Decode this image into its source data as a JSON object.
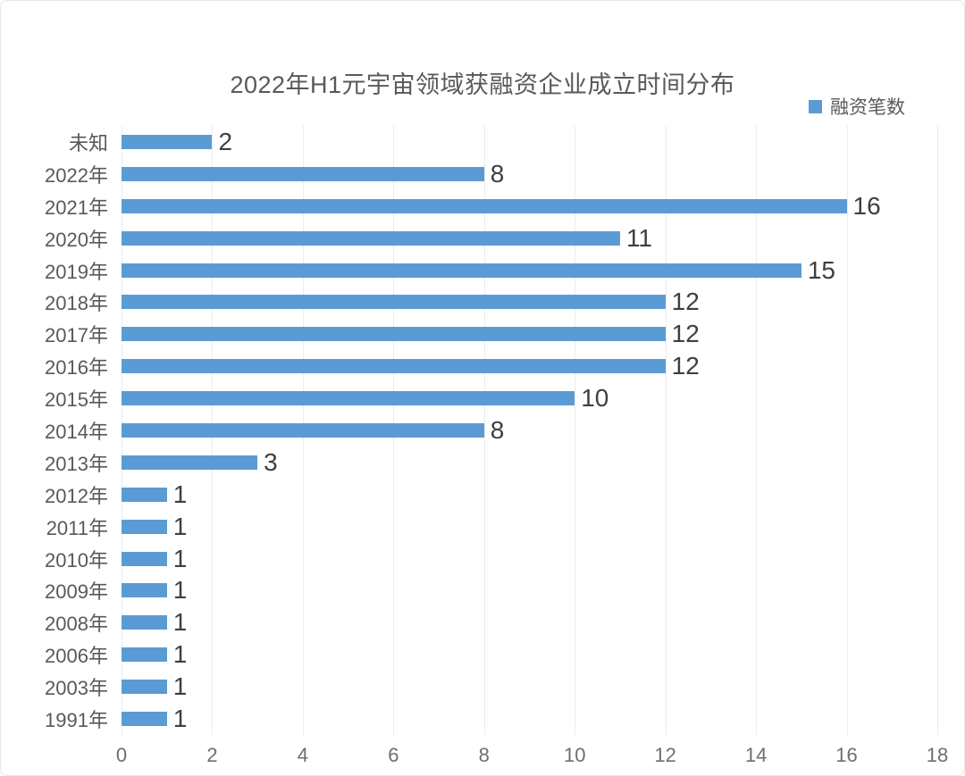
{
  "title": "2022年H1元宇宙领域获融资企业成立时间分布",
  "legend": {
    "label": "融资笔数",
    "color": "#5B9BD5"
  },
  "chart_data": {
    "type": "bar",
    "orientation": "horizontal",
    "title": "2022年H1元宇宙领域获融资企业成立时间分布",
    "series_name": "融资笔数",
    "categories": [
      "未知",
      "2022年",
      "2021年",
      "2020年",
      "2019年",
      "2018年",
      "2017年",
      "2016年",
      "2015年",
      "2014年",
      "2013年",
      "2012年",
      "2011年",
      "2010年",
      "2009年",
      "2008年",
      "2006年",
      "2003年",
      "1991年"
    ],
    "values": [
      2,
      8,
      16,
      11,
      15,
      12,
      12,
      12,
      10,
      8,
      3,
      1,
      1,
      1,
      1,
      1,
      1,
      1,
      1
    ],
    "bar_color": "#5B9BD5",
    "xlim": [
      0,
      18
    ],
    "x_ticks": [
      0,
      2,
      4,
      6,
      8,
      10,
      12,
      14,
      16,
      18
    ],
    "grid": true,
    "legend_position": "top-right",
    "value_labels": true
  }
}
